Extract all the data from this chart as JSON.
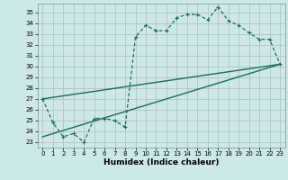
{
  "xlabel": "Humidex (Indice chaleur)",
  "bg_color": "#cce8e8",
  "line_color": "#1a6b5a",
  "xlim": [
    -0.5,
    23.5
  ],
  "ylim": [
    22.5,
    35.8
  ],
  "xticks": [
    0,
    1,
    2,
    3,
    4,
    5,
    6,
    7,
    8,
    9,
    10,
    11,
    12,
    13,
    14,
    15,
    16,
    17,
    18,
    19,
    20,
    21,
    22,
    23
  ],
  "yticks": [
    23,
    24,
    25,
    26,
    27,
    28,
    29,
    30,
    31,
    32,
    33,
    34,
    35
  ],
  "line1_x": [
    0,
    1,
    2,
    3,
    4,
    5,
    6,
    7,
    8,
    9,
    10,
    11,
    12,
    13,
    14,
    15,
    16,
    17,
    18,
    19,
    20,
    21,
    22,
    23
  ],
  "line1_y": [
    27.0,
    24.8,
    23.5,
    23.8,
    23.0,
    25.2,
    25.2,
    25.0,
    24.4,
    32.7,
    33.8,
    33.3,
    33.3,
    34.5,
    34.8,
    34.8,
    34.3,
    35.5,
    34.2,
    33.8,
    33.1,
    32.5,
    32.5,
    30.2
  ],
  "line2_x": [
    0,
    23
  ],
  "line2_y": [
    27.0,
    30.2
  ],
  "line3_x": [
    0,
    23
  ],
  "line3_y": [
    23.5,
    30.2
  ]
}
